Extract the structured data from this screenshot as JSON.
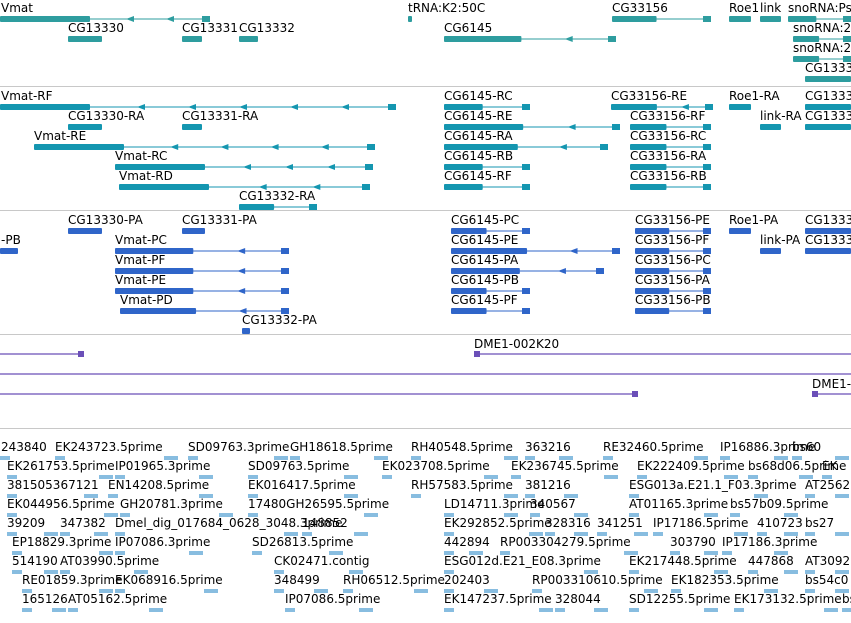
{
  "colors": {
    "gene": "#2e9d9f",
    "transcript": "#1496b0",
    "cds": "#2f65c9",
    "est_clone": "#6b4fb8",
    "cdna": "#88bde0",
    "separator": "#c8c8c8",
    "text": "#000000"
  },
  "tracks": [
    {
      "name": "gene-track",
      "color": "gene",
      "lanes": [
        [
          [
            "Vmat",
            -0.5,
            210
          ],
          [
            "tRNA:K2:50C",
            408,
            410
          ],
          [
            "CG33156",
            612,
            711
          ],
          [
            "Roe1",
            729,
            751
          ],
          [
            "link",
            760,
            781
          ],
          [
            "snoRNA:Psi",
            788,
            851
          ]
        ],
        [
          [
            "CG13330",
            68,
            102
          ],
          [
            "CG13331",
            182,
            202
          ],
          [
            "CG13332",
            239,
            258
          ],
          [
            "CG6145",
            444,
            616
          ],
          [
            "snoRNA:2R",
            793,
            851
          ]
        ],
        [
          [
            "snoRNA:2",
            793,
            851
          ]
        ],
        [
          [
            "CG1333",
            805,
            851
          ]
        ]
      ]
    },
    {
      "name": "transcript-track",
      "color": "transcript",
      "lanes": [
        [
          [
            "Vmat-RF",
            -0.5,
            396
          ],
          [
            "CG6145-RC",
            444,
            530
          ],
          [
            "CG33156-RE",
            611,
            713
          ],
          [
            "Roe1-RA",
            729,
            751
          ],
          [
            "CG1333",
            805,
            851
          ]
        ],
        [
          [
            "CG13330-RA",
            68,
            102
          ],
          [
            "CG13331-RA",
            182,
            202
          ],
          [
            "CG6145-RE",
            444,
            620
          ],
          [
            "CG33156-RF",
            630,
            711
          ],
          [
            "link-RA",
            760,
            781
          ],
          [
            "CG1333",
            805,
            851
          ]
        ],
        [
          [
            "Vmat-RE",
            34,
            375
          ],
          [
            "CG6145-RA",
            444,
            608
          ],
          [
            "CG33156-RC",
            630,
            711
          ]
        ],
        [
          [
            "Vmat-RC",
            115,
            373
          ],
          [
            "CG6145-RB",
            444,
            530
          ],
          [
            "CG33156-RA",
            630,
            711
          ]
        ],
        [
          [
            "Vmat-RD",
            119,
            370
          ],
          [
            "CG6145-RF",
            444,
            530
          ],
          [
            "CG33156-RB",
            630,
            711
          ]
        ],
        [
          [
            "CG13332-RA",
            239,
            317
          ]
        ]
      ]
    },
    {
      "name": "cds-track",
      "color": "cds",
      "lanes": [
        [
          [
            "CG13330-PA",
            68,
            102
          ],
          [
            "CG13331-PA",
            182,
            205
          ],
          [
            "CG6145-PC",
            451,
            530
          ],
          [
            "CG33156-PE",
            635,
            711
          ],
          [
            "Roe1-PA",
            729,
            751
          ],
          [
            "CG1333",
            805,
            851
          ]
        ],
        [
          [
            "-PB",
            -0.5,
            18
          ],
          [
            "Vmat-PC",
            115,
            289
          ],
          [
            "CG6145-PE",
            451,
            620
          ],
          [
            "CG33156-PF",
            635,
            711
          ],
          [
            "link-PA",
            760,
            781
          ],
          [
            "CG1333",
            805,
            851
          ]
        ],
        [
          [
            "Vmat-PF",
            115,
            289
          ],
          [
            "CG6145-PA",
            451,
            604
          ],
          [
            "CG33156-PC",
            635,
            711
          ]
        ],
        [
          [
            "Vmat-PE",
            115,
            289
          ],
          [
            "CG6145-PB",
            451,
            530
          ],
          [
            "CG33156-PA",
            635,
            711
          ]
        ],
        [
          [
            "Vmat-PD",
            120,
            289
          ],
          [
            "CG6145-PF",
            451,
            530
          ],
          [
            "CG33156-PB",
            635,
            711
          ]
        ],
        [
          [
            "CG13332-PA",
            242,
            250
          ]
        ]
      ]
    },
    {
      "name": "est-clone-track",
      "color": "est_clone",
      "lanes": [
        [
          [
            "",
            -0.5,
            84
          ],
          [
            "DME1-002K20",
            474,
            851
          ]
        ],
        [
          [
            "",
            -0.5,
            851
          ]
        ],
        [
          [
            "",
            -0.5,
            638
          ],
          [
            "DME1-",
            812,
            851
          ]
        ]
      ]
    },
    {
      "name": "cdna-track",
      "color": "cdna",
      "lanes": [
        [
          [
            "243840",
            -0.5,
            40
          ],
          [
            "EK243723.5prime",
            55,
            180
          ],
          [
            "SD09763.3prime",
            188,
            290
          ],
          [
            "GH18618.5prime",
            290,
            390
          ],
          [
            "RH40548.5prime",
            411,
            520
          ],
          [
            "363216",
            525,
            575
          ],
          [
            "RE32460.5prime",
            603,
            710
          ],
          [
            "IP16886.3prime",
            720,
            790
          ],
          [
            "bs60",
            792,
            851
          ]
        ],
        [
          [
            "EK261753.5prime",
            7,
            115
          ],
          [
            "IP01965.3prime",
            115,
            215
          ],
          [
            "SD09763.5prime",
            248,
            360
          ],
          [
            "EK023708.5prime",
            382,
            500
          ],
          [
            "EK236745.5prime",
            511,
            620
          ],
          [
            "EK222409.5prime",
            637,
            740
          ],
          [
            "bs68d06.5prime",
            748,
            815
          ],
          [
            "EK",
            822,
            851
          ]
        ],
        [
          [
            "381505367121",
            7,
            100
          ],
          [
            "EN14208.5prime",
            108,
            215
          ],
          [
            "EK016417.5prime",
            248,
            360
          ],
          [
            "RH57583.5prime",
            411,
            520
          ],
          [
            "381216",
            525,
            580
          ],
          [
            "ESG013a.E21.1_F03.3prime",
            629,
            770
          ],
          [
            "AT2562",
            805,
            851
          ]
        ],
        [
          [
            "EK044956.5prime",
            7,
            120
          ],
          [
            "GH20781.3prime",
            120,
            235
          ],
          [
            "17480GH26595.5prime",
            248,
            380
          ],
          [
            "LD14711.3prime",
            444,
            520
          ],
          [
            "340567",
            530,
            590
          ],
          [
            "AT01165.3prime",
            629,
            720
          ],
          [
            "bs57b09.5prime",
            730,
            800
          ]
        ],
        [
          [
            "39209",
            7,
            60
          ],
          [
            "347382",
            60,
            110
          ],
          [
            "Dmel_dig_017684_0628_3048.3prime",
            115,
            300
          ],
          [
            "148852",
            302,
            370
          ],
          [
            "EK292852.5prime",
            444,
            545
          ],
          [
            "328316",
            545,
            590
          ],
          [
            "341251",
            597,
            650
          ],
          [
            "IP17186.5prime",
            653,
            750
          ],
          [
            "410723",
            757,
            800
          ],
          [
            "bs27",
            805,
            851
          ]
        ],
        [
          [
            "EP18829.3prime",
            12,
            115
          ],
          [
            "IP07086.3prime",
            115,
            205
          ],
          [
            "SD26813.5prime",
            252,
            345
          ],
          [
            "442894",
            444,
            485
          ],
          [
            "RP003304279.5prime",
            500,
            640
          ],
          [
            "303790",
            670,
            720
          ],
          [
            "IP17186.3prime",
            722,
            790
          ]
        ],
        [
          [
            "514190",
            12,
            60
          ],
          [
            "AT03990.5prime",
            60,
            150
          ],
          [
            "CK02471.contig",
            274,
            365
          ],
          [
            "ESG012d.E21_E08.3prime",
            444,
            600
          ],
          [
            "EK217448.5prime",
            629,
            730
          ],
          [
            "447868",
            748,
            800
          ],
          [
            "AT3092",
            805,
            851
          ]
        ],
        [
          [
            "RE01859.3prime",
            22,
            115
          ],
          [
            "EK068916.5prime",
            115,
            220
          ],
          [
            "348499",
            274,
            330
          ],
          [
            "RH06512.5prime",
            343,
            430
          ],
          [
            "202403",
            444,
            500
          ],
          [
            "RP003310610.5prime",
            532,
            660
          ],
          [
            "EK182353.5prime",
            671,
            780
          ],
          [
            "bs54c0",
            805,
            851
          ]
        ],
        [
          [
            "165126",
            22,
            68
          ],
          [
            "AT05162.5prime",
            68,
            165
          ],
          [
            "IP07086.5prime",
            285,
            375
          ],
          [
            "EK147237.5prime",
            444,
            555
          ],
          [
            "328044",
            555,
            610
          ],
          [
            "SD12255.5prime",
            629,
            720
          ],
          [
            "EK173132.5prime",
            734,
            840
          ],
          [
            "bs",
            842,
            851
          ]
        ]
      ]
    }
  ]
}
